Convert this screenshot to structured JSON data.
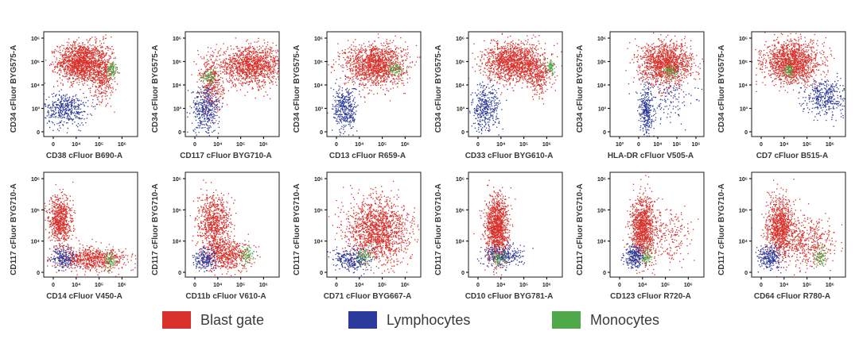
{
  "colors": {
    "blast": "#d9312b",
    "lymph": "#2c3a9c",
    "mono": "#4fa84a",
    "axis": "#1a1a1a",
    "label": "#3a3a3a"
  },
  "legend": {
    "blast_label": "Blast gate",
    "lymph_label": "Lymphocytes",
    "mono_label": "Monocytes"
  },
  "chart_data": [
    {
      "type": "scatter",
      "xlabel": "CD38 cFluor B690-A",
      "ylabel": "CD34 cFluor BYG575-A",
      "xticks": [
        "0",
        "10⁴",
        "10⁵",
        "10⁶"
      ],
      "yticks": [
        "10⁶",
        "10⁵",
        "10⁴",
        "10³",
        "0"
      ],
      "populations": [
        {
          "series": "blast",
          "cx": 2.3,
          "cy": 5.0,
          "sx": 0.55,
          "sy": 0.42,
          "n": 1300
        },
        {
          "series": "blast",
          "cx": 3.4,
          "cy": 4.6,
          "sx": 0.3,
          "sy": 0.6,
          "n": 500
        },
        {
          "series": "lymph",
          "cx": 1.6,
          "cy": 3.0,
          "sx": 0.55,
          "sy": 0.35,
          "n": 420
        },
        {
          "series": "mono",
          "cx": 3.9,
          "cy": 4.7,
          "sx": 0.12,
          "sy": 0.18,
          "n": 80
        }
      ]
    },
    {
      "type": "scatter",
      "xlabel": "CD117 cFluor BYG710-A",
      "ylabel": "CD34 cFluor BYG575-A",
      "xticks": [
        "0",
        "10⁴",
        "10⁵",
        "10⁶"
      ],
      "yticks": [
        "10⁶",
        "10⁵",
        "10⁴",
        "10³",
        "0"
      ],
      "populations": [
        {
          "series": "blast",
          "cx": 3.8,
          "cy": 4.85,
          "sx": 0.9,
          "sy": 0.4,
          "n": 1300
        },
        {
          "series": "blast",
          "cx": 1.8,
          "cy": 4.0,
          "sx": 0.3,
          "sy": 0.6,
          "n": 350
        },
        {
          "series": "lymph",
          "cx": 1.5,
          "cy": 3.0,
          "sx": 0.35,
          "sy": 0.5,
          "n": 380
        },
        {
          "series": "mono",
          "cx": 1.7,
          "cy": 4.4,
          "sx": 0.2,
          "sy": 0.15,
          "n": 70
        }
      ]
    },
    {
      "type": "scatter",
      "xlabel": "CD13 cFluor R659-A",
      "ylabel": "CD34 cFluor BYG575-A",
      "xticks": [
        "0",
        "10⁴",
        "10⁵",
        "10⁶"
      ],
      "yticks": [
        "10⁶",
        "10⁵",
        "10⁴",
        "10³",
        "0"
      ],
      "populations": [
        {
          "series": "blast",
          "cx": 2.9,
          "cy": 4.9,
          "sx": 0.75,
          "sy": 0.45,
          "n": 1400
        },
        {
          "series": "lymph",
          "cx": 1.4,
          "cy": 3.0,
          "sx": 0.3,
          "sy": 0.5,
          "n": 380
        },
        {
          "series": "mono",
          "cx": 3.9,
          "cy": 4.7,
          "sx": 0.18,
          "sy": 0.15,
          "n": 70
        }
      ]
    },
    {
      "type": "scatter",
      "xlabel": "CD33 cFluor BYG610-A",
      "ylabel": "CD34 cFluor BYG575-A",
      "xticks": [
        "0",
        "10⁴",
        "10⁵",
        "10⁶"
      ],
      "yticks": [
        "10⁶",
        "10⁵",
        "10⁴",
        "10³",
        "0"
      ],
      "populations": [
        {
          "series": "blast",
          "cx": 2.8,
          "cy": 5.0,
          "sx": 0.75,
          "sy": 0.42,
          "n": 1400
        },
        {
          "series": "blast",
          "cx": 4.0,
          "cy": 4.4,
          "sx": 0.3,
          "sy": 0.4,
          "n": 250
        },
        {
          "series": "lymph",
          "cx": 1.3,
          "cy": 3.0,
          "sx": 0.35,
          "sy": 0.5,
          "n": 380
        },
        {
          "series": "mono",
          "cx": 4.6,
          "cy": 4.8,
          "sx": 0.12,
          "sy": 0.15,
          "n": 70
        }
      ]
    },
    {
      "type": "scatter",
      "xlabel": "HLA-DR cFluor V505-A",
      "ylabel": "CD34 cFluor BYG575-A",
      "xticks": [
        "10³",
        "0",
        "10⁴",
        "10⁵",
        "10⁶"
      ],
      "yticks": [
        "10⁶",
        "10⁵",
        "10⁴",
        "10³",
        "0"
      ],
      "populations": [
        {
          "series": "blast",
          "cx": 3.3,
          "cy": 4.95,
          "sx": 0.65,
          "sy": 0.45,
          "n": 1300
        },
        {
          "series": "lymph",
          "cx": 2.3,
          "cy": 2.9,
          "sx": 0.15,
          "sy": 0.55,
          "n": 300
        },
        {
          "series": "lymph",
          "cx": 3.3,
          "cy": 3.5,
          "sx": 0.7,
          "sy": 0.5,
          "n": 150
        },
        {
          "series": "mono",
          "cx": 3.5,
          "cy": 4.6,
          "sx": 0.2,
          "sy": 0.15,
          "n": 70
        }
      ]
    },
    {
      "type": "scatter",
      "xlabel": "CD7 cFluor B515-A",
      "ylabel": "CD34 cFluor BYG575-A",
      "xticks": [
        "0",
        "10⁴",
        "10⁵",
        "10⁶"
      ],
      "yticks": [
        "10⁶",
        "10⁵",
        "10⁴",
        "10³",
        "0"
      ],
      "populations": [
        {
          "series": "blast",
          "cx": 2.5,
          "cy": 5.0,
          "sx": 0.7,
          "sy": 0.45,
          "n": 1400
        },
        {
          "series": "lymph",
          "cx": 4.2,
          "cy": 3.5,
          "sx": 0.5,
          "sy": 0.4,
          "n": 380
        },
        {
          "series": "mono",
          "cx": 2.3,
          "cy": 4.65,
          "sx": 0.15,
          "sy": 0.15,
          "n": 70
        }
      ]
    },
    {
      "type": "scatter",
      "xlabel": "CD14 cFluor V450-A",
      "ylabel": "CD117 cFluor BYG710-A",
      "xticks": [
        "0",
        "10⁴",
        "10⁵",
        "10⁶"
      ],
      "yticks": [
        "10⁶",
        "10⁵",
        "10⁴",
        "0"
      ],
      "populations": [
        {
          "series": "blast",
          "cx": 1.3,
          "cy": 4.2,
          "sx": 0.3,
          "sy": 0.55,
          "n": 700
        },
        {
          "series": "blast",
          "cx": 2.9,
          "cy": 2.6,
          "sx": 0.9,
          "sy": 0.25,
          "n": 700
        },
        {
          "series": "lymph",
          "cx": 1.5,
          "cy": 2.6,
          "sx": 0.3,
          "sy": 0.25,
          "n": 200
        },
        {
          "series": "mono",
          "cx": 3.8,
          "cy": 2.55,
          "sx": 0.15,
          "sy": 0.2,
          "n": 70
        }
      ]
    },
    {
      "type": "scatter",
      "xlabel": "CD11b cFluor V610-A",
      "ylabel": "CD117 cFluor BYG710-A",
      "xticks": [
        "0",
        "10⁴",
        "10⁵",
        "10⁶"
      ],
      "yticks": [
        "10⁶",
        "10⁵",
        "10⁴",
        "0"
      ],
      "populations": [
        {
          "series": "blast",
          "cx": 1.9,
          "cy": 4.2,
          "sx": 0.4,
          "sy": 0.55,
          "n": 700
        },
        {
          "series": "blast",
          "cx": 2.5,
          "cy": 2.8,
          "sx": 0.6,
          "sy": 0.35,
          "n": 600
        },
        {
          "series": "lymph",
          "cx": 1.5,
          "cy": 2.6,
          "sx": 0.3,
          "sy": 0.25,
          "n": 200
        },
        {
          "series": "mono",
          "cx": 3.6,
          "cy": 2.8,
          "sx": 0.15,
          "sy": 0.2,
          "n": 70
        }
      ]
    },
    {
      "type": "scatter",
      "xlabel": "CD71 cFluor BYG667-A",
      "ylabel": "CD117 cFluor BYG710-A",
      "xticks": [
        "0",
        "10⁴",
        "10⁵",
        "10⁶"
      ],
      "yticks": [
        "10⁶",
        "10⁵",
        "10⁴",
        "0"
      ],
      "populations": [
        {
          "series": "blast",
          "cx": 3.0,
          "cy": 3.8,
          "sx": 0.8,
          "sy": 0.7,
          "n": 1500
        },
        {
          "series": "lymph",
          "cx": 1.7,
          "cy": 2.6,
          "sx": 0.5,
          "sy": 0.25,
          "n": 280
        },
        {
          "series": "mono",
          "cx": 2.3,
          "cy": 2.7,
          "sx": 0.2,
          "sy": 0.2,
          "n": 70
        }
      ]
    },
    {
      "type": "scatter",
      "xlabel": "CD10 cFluor BYG781-A",
      "ylabel": "CD117 cFluor BYG710-A",
      "xticks": [
        "0",
        "10⁴",
        "10⁵",
        "10⁶"
      ],
      "yticks": [
        "10⁶",
        "10⁵",
        "10⁴",
        "0"
      ],
      "populations": [
        {
          "series": "blast",
          "cx": 1.9,
          "cy": 3.9,
          "sx": 0.28,
          "sy": 0.7,
          "n": 1200
        },
        {
          "series": "lymph",
          "cx": 2.2,
          "cy": 2.7,
          "sx": 0.5,
          "sy": 0.25,
          "n": 280
        },
        {
          "series": "mono",
          "cx": 2.0,
          "cy": 2.6,
          "sx": 0.15,
          "sy": 0.15,
          "n": 60
        }
      ]
    },
    {
      "type": "scatter",
      "xlabel": "CD123 cFluor R720-A",
      "ylabel": "CD117 cFluor BYG710-A",
      "xticks": [
        "0",
        "10⁴",
        "10⁵",
        "10⁶"
      ],
      "yticks": [
        "10⁶",
        "10⁵",
        "10⁴",
        "0"
      ],
      "populations": [
        {
          "series": "blast",
          "cx": 2.1,
          "cy": 3.9,
          "sx": 0.3,
          "sy": 0.7,
          "n": 1000
        },
        {
          "series": "blast",
          "cx": 3.2,
          "cy": 3.6,
          "sx": 0.6,
          "sy": 0.6,
          "n": 250
        },
        {
          "series": "lymph",
          "cx": 1.7,
          "cy": 2.7,
          "sx": 0.25,
          "sy": 0.25,
          "n": 250
        },
        {
          "series": "mono",
          "cx": 2.3,
          "cy": 2.7,
          "sx": 0.15,
          "sy": 0.15,
          "n": 60
        }
      ]
    },
    {
      "type": "scatter",
      "xlabel": "CD64 cFluor R780-A",
      "ylabel": "CD117 cFluor BYG710-A",
      "xticks": [
        "0",
        "10⁴",
        "10⁵",
        "10⁶"
      ],
      "yticks": [
        "10⁶",
        "10⁵",
        "10⁴",
        "0"
      ],
      "populations": [
        {
          "series": "blast",
          "cx": 1.9,
          "cy": 4.0,
          "sx": 0.35,
          "sy": 0.6,
          "n": 900
        },
        {
          "series": "blast",
          "cx": 3.2,
          "cy": 3.3,
          "sx": 0.7,
          "sy": 0.55,
          "n": 500
        },
        {
          "series": "lymph",
          "cx": 1.4,
          "cy": 2.7,
          "sx": 0.3,
          "sy": 0.25,
          "n": 250
        },
        {
          "series": "mono",
          "cx": 3.9,
          "cy": 2.7,
          "sx": 0.15,
          "sy": 0.2,
          "n": 80
        }
      ]
    }
  ]
}
